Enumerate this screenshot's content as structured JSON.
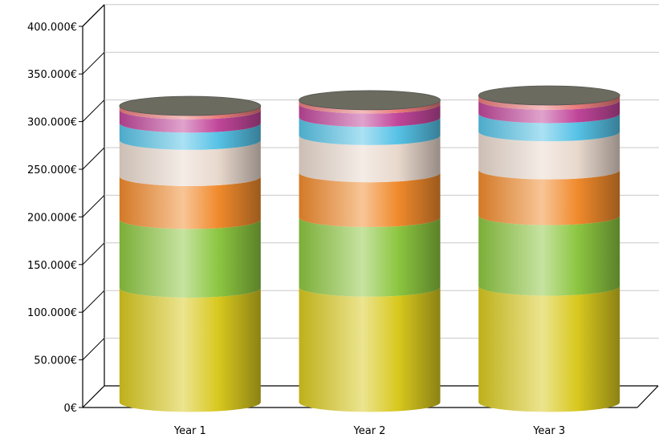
{
  "chart_data": {
    "type": "bar",
    "stacked": true,
    "style": "3d-cylinder",
    "categories": [
      "Year 1",
      "Year 2",
      "Year 3"
    ],
    "y_ticks": [
      "0€",
      "50.000€",
      "100.000€",
      "150.000€",
      "200.000€",
      "250.000€",
      "300.000€",
      "350.000€",
      "400.000€"
    ],
    "ylim": [
      0,
      400000
    ],
    "grid": true,
    "legend": "none",
    "title": "",
    "xlabel": "",
    "ylabel": "",
    "series": [
      {
        "color": "#d8c81e",
        "values": [
          120000,
          121000,
          122000
        ]
      },
      {
        "color": "#8cc640",
        "values": [
          72000,
          73000,
          74000
        ]
      },
      {
        "color": "#f08a2c",
        "values": [
          45000,
          47000,
          48000
        ]
      },
      {
        "color": "#e8d8cc",
        "values": [
          38000,
          39000,
          40000
        ]
      },
      {
        "color": "#56c2e6",
        "values": [
          18000,
          19000,
          19000
        ]
      },
      {
        "color": "#c0469a",
        "values": [
          14000,
          14000,
          14000
        ]
      },
      {
        "color": "#e87a7a",
        "values": [
          4000,
          4000,
          5000
        ]
      }
    ],
    "top_color": "#6b6b60"
  }
}
